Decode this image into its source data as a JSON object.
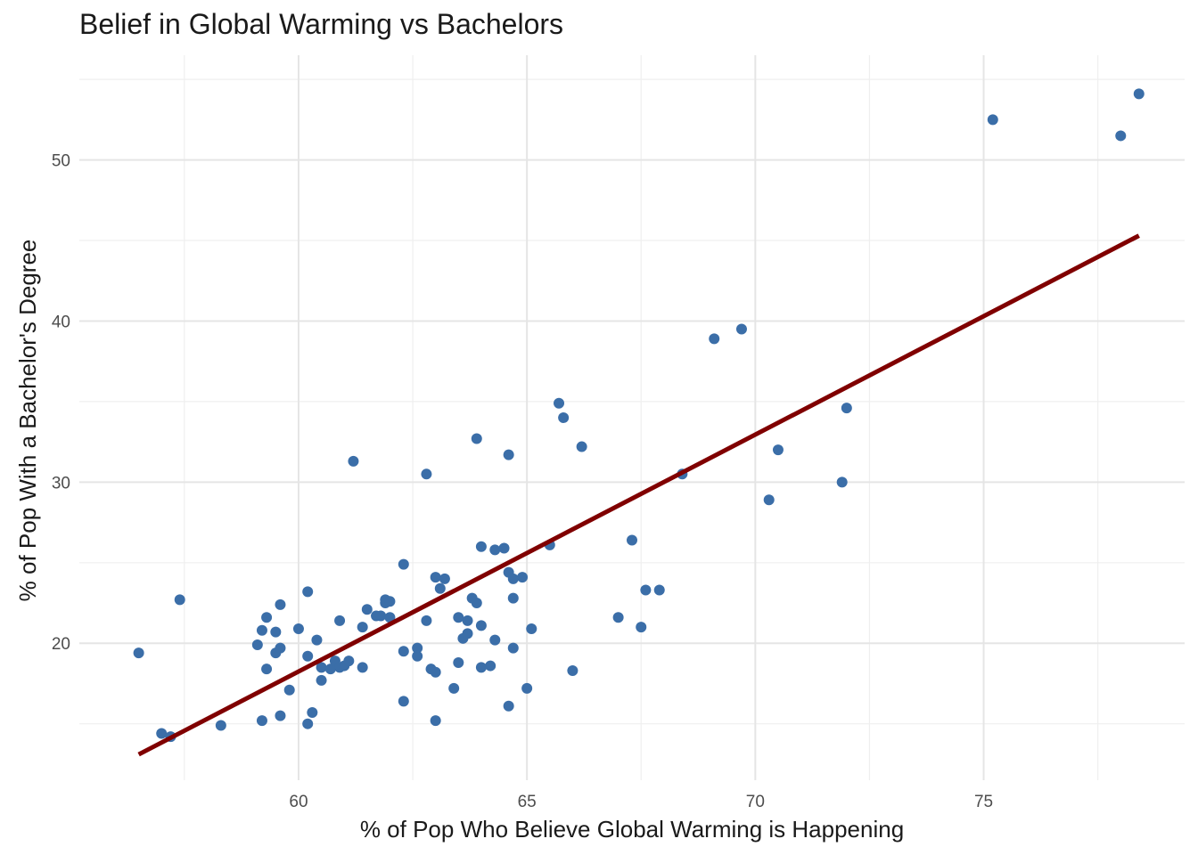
{
  "chart_data": {
    "type": "scatter",
    "title": "Belief in Global Warming vs Bachelors",
    "xlabel": "% of Pop Who Believe Global Warming is Happening",
    "ylabel": "% of Pop With a Bachelor's Degree",
    "xlim": [
      55.2,
      79.4
    ],
    "ylim": [
      11.5,
      56.5
    ],
    "x_ticks": [
      60,
      65,
      70,
      75
    ],
    "y_ticks": [
      20,
      30,
      40,
      50
    ],
    "x_minor": [
      57.5,
      62.5,
      67.5,
      72.5,
      77.5
    ],
    "y_minor": [
      15,
      25,
      35,
      45,
      55
    ],
    "grid": true,
    "legend": "none",
    "colors": {
      "points": "#3b6ea8",
      "fit_line": "#800000"
    },
    "fit_line": {
      "x": [
        56.5,
        78.4
      ],
      "y": [
        13.1,
        45.3
      ]
    },
    "points": [
      {
        "x": 56.5,
        "y": 19.4
      },
      {
        "x": 57.0,
        "y": 14.4
      },
      {
        "x": 57.2,
        "y": 14.2
      },
      {
        "x": 57.4,
        "y": 22.7
      },
      {
        "x": 58.3,
        "y": 14.9
      },
      {
        "x": 59.1,
        "y": 19.9
      },
      {
        "x": 59.2,
        "y": 20.8
      },
      {
        "x": 59.2,
        "y": 15.2
      },
      {
        "x": 59.3,
        "y": 18.4
      },
      {
        "x": 59.3,
        "y": 21.6
      },
      {
        "x": 59.5,
        "y": 19.4
      },
      {
        "x": 59.5,
        "y": 20.7
      },
      {
        "x": 59.6,
        "y": 19.7
      },
      {
        "x": 59.6,
        "y": 22.4
      },
      {
        "x": 59.6,
        "y": 15.5
      },
      {
        "x": 59.8,
        "y": 17.1
      },
      {
        "x": 60.0,
        "y": 20.9
      },
      {
        "x": 60.2,
        "y": 19.2
      },
      {
        "x": 60.2,
        "y": 15.0
      },
      {
        "x": 60.2,
        "y": 23.2
      },
      {
        "x": 60.3,
        "y": 15.7
      },
      {
        "x": 60.4,
        "y": 20.2
      },
      {
        "x": 60.5,
        "y": 18.5
      },
      {
        "x": 60.5,
        "y": 17.7
      },
      {
        "x": 60.7,
        "y": 18.4
      },
      {
        "x": 60.8,
        "y": 18.9
      },
      {
        "x": 60.9,
        "y": 18.5
      },
      {
        "x": 60.9,
        "y": 21.4
      },
      {
        "x": 61.0,
        "y": 18.6
      },
      {
        "x": 61.1,
        "y": 18.9
      },
      {
        "x": 61.2,
        "y": 31.3
      },
      {
        "x": 61.4,
        "y": 21.0
      },
      {
        "x": 61.4,
        "y": 18.5
      },
      {
        "x": 61.5,
        "y": 22.1
      },
      {
        "x": 61.7,
        "y": 21.7
      },
      {
        "x": 61.8,
        "y": 21.7
      },
      {
        "x": 61.9,
        "y": 22.7
      },
      {
        "x": 61.9,
        "y": 22.5
      },
      {
        "x": 62.0,
        "y": 22.6
      },
      {
        "x": 62.0,
        "y": 21.6
      },
      {
        "x": 62.3,
        "y": 24.9
      },
      {
        "x": 62.3,
        "y": 19.5
      },
      {
        "x": 62.3,
        "y": 16.4
      },
      {
        "x": 62.6,
        "y": 19.7
      },
      {
        "x": 62.6,
        "y": 19.2
      },
      {
        "x": 62.8,
        "y": 21.4
      },
      {
        "x": 62.8,
        "y": 30.5
      },
      {
        "x": 62.9,
        "y": 18.4
      },
      {
        "x": 63.0,
        "y": 18.2
      },
      {
        "x": 63.0,
        "y": 24.1
      },
      {
        "x": 63.0,
        "y": 15.2
      },
      {
        "x": 63.1,
        "y": 23.4
      },
      {
        "x": 63.2,
        "y": 24.0
      },
      {
        "x": 63.4,
        "y": 17.2
      },
      {
        "x": 63.5,
        "y": 18.8
      },
      {
        "x": 63.5,
        "y": 21.6
      },
      {
        "x": 63.6,
        "y": 20.3
      },
      {
        "x": 63.7,
        "y": 21.4
      },
      {
        "x": 63.7,
        "y": 20.6
      },
      {
        "x": 63.8,
        "y": 22.8
      },
      {
        "x": 63.9,
        "y": 22.5
      },
      {
        "x": 63.9,
        "y": 32.7
      },
      {
        "x": 64.0,
        "y": 21.1
      },
      {
        "x": 64.0,
        "y": 26.0
      },
      {
        "x": 64.0,
        "y": 18.5
      },
      {
        "x": 64.2,
        "y": 18.6
      },
      {
        "x": 64.3,
        "y": 20.2
      },
      {
        "x": 64.3,
        "y": 25.8
      },
      {
        "x": 64.5,
        "y": 25.9
      },
      {
        "x": 64.6,
        "y": 24.4
      },
      {
        "x": 64.6,
        "y": 16.1
      },
      {
        "x": 64.6,
        "y": 31.7
      },
      {
        "x": 64.7,
        "y": 22.8
      },
      {
        "x": 64.7,
        "y": 24.0
      },
      {
        "x": 64.7,
        "y": 19.7
      },
      {
        "x": 64.9,
        "y": 24.1
      },
      {
        "x": 65.0,
        "y": 17.2
      },
      {
        "x": 65.1,
        "y": 20.9
      },
      {
        "x": 65.5,
        "y": 26.1
      },
      {
        "x": 65.7,
        "y": 34.9
      },
      {
        "x": 65.8,
        "y": 34.0
      },
      {
        "x": 66.0,
        "y": 18.3
      },
      {
        "x": 66.2,
        "y": 32.2
      },
      {
        "x": 67.0,
        "y": 21.6
      },
      {
        "x": 67.3,
        "y": 26.4
      },
      {
        "x": 67.5,
        "y": 21.0
      },
      {
        "x": 67.6,
        "y": 23.3
      },
      {
        "x": 67.9,
        "y": 23.3
      },
      {
        "x": 68.4,
        "y": 30.5
      },
      {
        "x": 69.1,
        "y": 38.9
      },
      {
        "x": 69.7,
        "y": 39.5
      },
      {
        "x": 70.3,
        "y": 28.9
      },
      {
        "x": 70.5,
        "y": 32.0
      },
      {
        "x": 71.9,
        "y": 30.0
      },
      {
        "x": 72.0,
        "y": 34.6
      },
      {
        "x": 75.2,
        "y": 52.5
      },
      {
        "x": 78.0,
        "y": 51.5
      },
      {
        "x": 78.4,
        "y": 54.1
      }
    ]
  }
}
